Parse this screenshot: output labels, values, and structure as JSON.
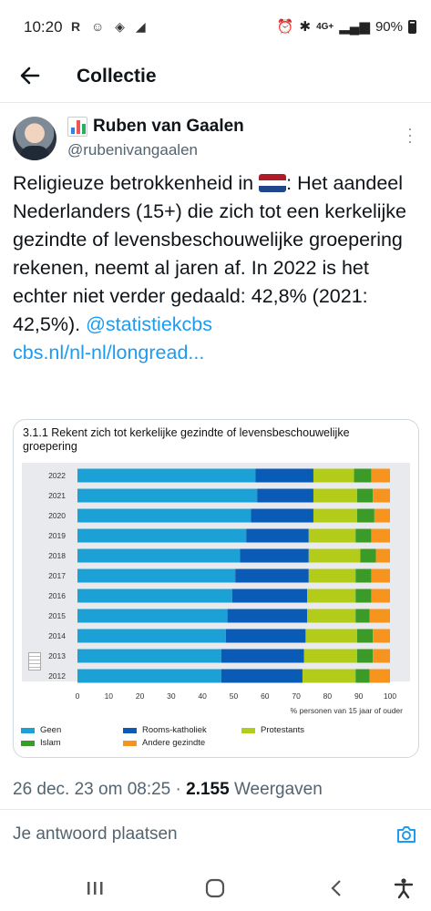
{
  "status": {
    "time": "10:20",
    "left_icons": "R ☺ ◈ ◢",
    "network": "4G+",
    "battery": "90%"
  },
  "appbar": {
    "title": "Collectie"
  },
  "tweet": {
    "name": "Ruben van Gaalen",
    "handle": "@rubenivangaalen",
    "text_part1": "Religieuze betrokkenheid in ",
    "text_part2": ": Het aandeel Nederlanders (15+) die zich tot een kerkelijke gezindte of levensbeschouwelijke groepering rekenen, neemt al jaren af. In 2022 is het echter niet verder gedaald: 42,8% (2021: 42,5%). ",
    "mention": "@statistiekcbs",
    "link": "cbs.nl/nl-nl/longread...",
    "date": "26 dec. 23 om 08:25",
    "separator": " · ",
    "views_count": "2.155",
    "views_label": " Weergaven"
  },
  "reply": {
    "placeholder": "Je antwoord plaatsen"
  },
  "colors": {
    "Geen": "#1ba1d6",
    "Rooms-katholiek": "#0a5bb5",
    "Protestants": "#b3cc1a",
    "Islam": "#3a9b29",
    "Andere gezindte": "#f7941d",
    "link": "#1d9bf0"
  },
  "chart_data": {
    "type": "bar",
    "orientation": "horizontal",
    "stacked": true,
    "title": "3.1.1 Rekent zich tot kerkelijke gezindte of levensbeschouwelijke groepering",
    "xlabel": "% personen van 15 jaar of ouder",
    "xlim": [
      0,
      100
    ],
    "xticks": [
      "0",
      "10",
      "20",
      "30",
      "40",
      "50",
      "60",
      "70",
      "80",
      "90",
      "100"
    ],
    "categories": [
      "2022",
      "2021",
      "2020",
      "2019",
      "2018",
      "2017",
      "2016",
      "2015",
      "2014",
      "2013",
      "2012"
    ],
    "series": [
      {
        "name": "Geen",
        "values": [
          57,
          57.5,
          55.5,
          54,
          52,
          50.5,
          49.5,
          48,
          47.5,
          46,
          46
        ]
      },
      {
        "name": "Rooms-katholiek",
        "values": [
          18.5,
          18,
          20,
          20,
          22,
          23.5,
          24,
          25.5,
          25.5,
          26.5,
          26
        ]
      },
      {
        "name": "Protestants",
        "values": [
          13,
          14,
          14,
          15,
          16.5,
          15,
          15.5,
          15.5,
          16.5,
          17,
          17
        ]
      },
      {
        "name": "Islam",
        "values": [
          5.5,
          5,
          5.5,
          5,
          5,
          5,
          5,
          4.5,
          5,
          5,
          4.5
        ]
      },
      {
        "name": "Andere gezindte",
        "values": [
          6,
          5.5,
          5,
          6,
          4.5,
          6,
          6,
          6.5,
          5.5,
          5.5,
          6.5
        ]
      }
    ],
    "legend_position": "bottom",
    "grid": false
  }
}
